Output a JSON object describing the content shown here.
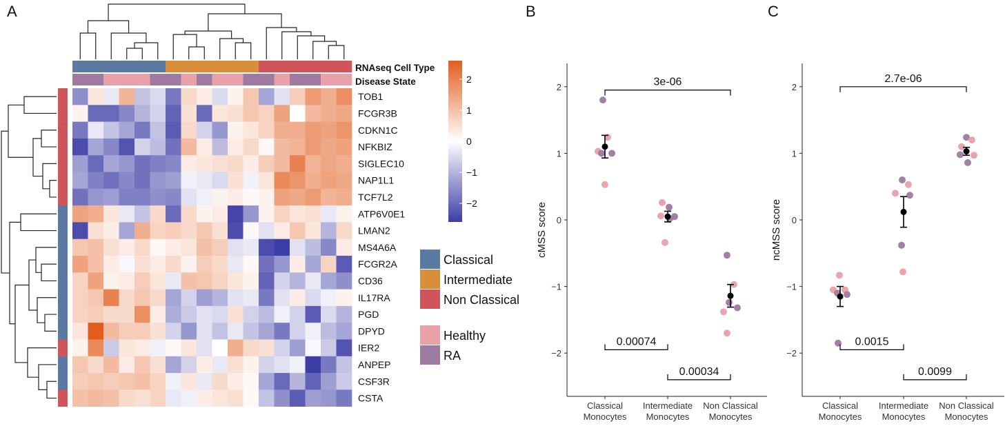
{
  "panels": {
    "a": "A",
    "b": "B",
    "c": "C"
  },
  "colors": {
    "classical": "#5b7aa3",
    "intermediate": "#d98e3a",
    "non_classical": "#cf555b",
    "healthy": "#e9a0a8",
    "ra": "#9d7a9f",
    "heat_low": "#3d3da6",
    "heat_mid": "#ffffff",
    "heat_high": "#e25d1d"
  },
  "chart_data": [
    {
      "type": "heatmap",
      "annotation_labels": [
        "RNAseq Cell Type",
        "Disease State"
      ],
      "column_cell_types": [
        "Classical",
        "Classical",
        "Classical",
        "Classical",
        "Classical",
        "Classical",
        "Intermediate",
        "Intermediate",
        "Intermediate",
        "Intermediate",
        "Intermediate",
        "Intermediate",
        "Non Classical",
        "Non Classical",
        "Non Classical",
        "Non Classical",
        "Non Classical",
        "Non Classical"
      ],
      "column_disease_states": [
        "RA",
        "RA",
        "Healthy",
        "Healthy",
        "Healthy",
        "RA",
        "RA",
        "Healthy",
        "RA",
        "Healthy",
        "Healthy",
        "RA",
        "RA",
        "Healthy",
        "RA",
        "RA",
        "Healthy",
        "Healthy"
      ],
      "genes": [
        "TOB1",
        "FCGR3B",
        "CDKN1C",
        "NFKBIZ",
        "SIGLEC10",
        "NAP1L1",
        "TCF7L2",
        "ATP6V0E1",
        "LMAN2",
        "MS4A6A",
        "FCGR2A",
        "CD36",
        "IL17RA",
        "PGD",
        "DPYD",
        "IER2",
        "ANPEP",
        "CSF3R",
        "CSTA"
      ],
      "gene_groups": [
        "Non Classical",
        "Non Classical",
        "Non Classical",
        "Non Classical",
        "Non Classical",
        "Non Classical",
        "Non Classical",
        "Classical",
        "Classical",
        "Classical",
        "Classical",
        "Classical",
        "Classical",
        "Classical",
        "Classical",
        "Non Classical",
        "Classical",
        "Classical",
        "Non Classical"
      ],
      "values": [
        [
          -1.5,
          0.4,
          -0.3,
          1.2,
          -0.8,
          -0.5,
          -1.8,
          0.6,
          0.3,
          -0.5,
          0.2,
          0.9,
          -1.2,
          -0.4,
          0.8,
          1.6,
          1.3,
          1.8
        ],
        [
          0.2,
          -2.0,
          -2.0,
          -1.6,
          -1.0,
          -0.6,
          -2.1,
          0.5,
          -2.0,
          0.4,
          0.5,
          0.9,
          0.7,
          1.5,
          0.0,
          1.1,
          1.3,
          1.4
        ],
        [
          -1.8,
          -0.3,
          -0.8,
          -1.2,
          -1.8,
          -0.8,
          -2.2,
          0.6,
          -0.6,
          -1.4,
          0.2,
          0.4,
          0.7,
          1.3,
          1.3,
          1.6,
          1.5,
          1.7
        ],
        [
          -2.4,
          -1.2,
          -1.6,
          -2.3,
          -0.6,
          -0.9,
          -1.9,
          1.1,
          0.3,
          -0.9,
          0.3,
          0.6,
          0.1,
          1.1,
          1.2,
          1.6,
          1.4,
          1.5
        ],
        [
          -1.3,
          -2.0,
          -1.2,
          -1.4,
          -1.9,
          -1.7,
          -1.6,
          0.3,
          0.4,
          0.5,
          0.6,
          0.3,
          0.8,
          1.1,
          2.0,
          1.2,
          1.4,
          1.3
        ],
        [
          -1.2,
          -1.7,
          -1.9,
          -1.6,
          -1.9,
          -1.4,
          -1.3,
          -0.2,
          -0.3,
          -0.5,
          0.5,
          -0.2,
          0.4,
          1.9,
          1.7,
          1.3,
          1.5,
          1.4
        ],
        [
          -1.9,
          -1.4,
          -1.3,
          -1.7,
          -1.7,
          -1.5,
          -1.6,
          -0.4,
          -0.2,
          0.2,
          0.3,
          0.1,
          0.2,
          1.5,
          1.4,
          1.6,
          1.2,
          1.3
        ],
        [
          1.5,
          1.3,
          0.4,
          -0.3,
          -0.8,
          0.6,
          -2.0,
          0.6,
          0.2,
          0.3,
          -2.5,
          -1.4,
          0.2,
          0.7,
          0.4,
          0.5,
          -0.3,
          0.2
        ],
        [
          -2.4,
          0.5,
          0.3,
          -1.2,
          1.3,
          0.7,
          0.8,
          0.6,
          0.9,
          0.5,
          -2.4,
          0.1,
          -0.4,
          0.3,
          0.9,
          0.4,
          -1.0,
          0.6
        ],
        [
          0.9,
          1.0,
          0.5,
          0.3,
          0.6,
          0.1,
          0.3,
          0.4,
          1.0,
          0.8,
          -0.4,
          -0.3,
          -2.4,
          -2.6,
          -0.4,
          -0.9,
          -1.6,
          0.3
        ],
        [
          1.5,
          1.0,
          0.3,
          -0.1,
          0.5,
          0.3,
          0.6,
          0.2,
          0.8,
          0.6,
          -0.3,
          0.1,
          -1.9,
          -1.4,
          0.3,
          -1.2,
          0.7,
          -2.2
        ],
        [
          0.7,
          1.5,
          0.2,
          0.3,
          0.8,
          0.4,
          -0.3,
          1.0,
          0.9,
          0.7,
          0.4,
          0.2,
          -2.1,
          -0.6,
          -1.0,
          -0.3,
          -1.2,
          -1.5
        ],
        [
          0.7,
          0.9,
          2.0,
          0.6,
          0.9,
          0.6,
          -1.2,
          -0.6,
          -1.3,
          -1.0,
          -0.4,
          -0.3,
          -1.8,
          -0.4,
          0.3,
          -0.5,
          -0.2,
          0.2
        ],
        [
          0.7,
          0.8,
          0.6,
          0.6,
          1.8,
          0.3,
          -1.1,
          -0.7,
          -0.4,
          -0.5,
          0.5,
          -0.6,
          -0.9,
          -0.2,
          -0.6,
          -2.2,
          -0.5,
          -1.0
        ],
        [
          0.4,
          2.6,
          1.1,
          0.8,
          0.8,
          0.5,
          -0.6,
          -1.4,
          -0.4,
          -0.8,
          -0.3,
          -0.8,
          -1.2,
          -1.8,
          -0.6,
          -0.2,
          -0.9,
          -1.2
        ],
        [
          0.2,
          1.9,
          -0.7,
          0.4,
          0.3,
          -0.2,
          0.1,
          0.4,
          -0.4,
          0.0,
          1.3,
          0.6,
          0.5,
          -0.6,
          -1.3,
          -0.1,
          -0.7,
          -2.3
        ],
        [
          0.9,
          0.6,
          1.1,
          0.3,
          0.9,
          0.5,
          -1.2,
          -0.6,
          0.3,
          -0.3,
          0.5,
          0.2,
          -0.6,
          -0.4,
          -0.2,
          -2.6,
          -1.8,
          -0.8
        ],
        [
          0.8,
          0.9,
          0.8,
          0.9,
          1.0,
          0.7,
          -0.2,
          0.4,
          -0.3,
          0.6,
          0.3,
          0.1,
          -1.2,
          -2.0,
          -1.0,
          -2.1,
          -1.3,
          -0.7
        ],
        [
          1.0,
          1.1,
          1.0,
          0.6,
          0.5,
          0.7,
          -0.3,
          -0.2,
          0.3,
          0.4,
          0.5,
          0.1,
          -0.8,
          -1.5,
          -2.2,
          -1.3,
          -1.4,
          -1.8
        ]
      ],
      "colorbar": {
        "ticks": [
          2,
          1,
          0,
          -1,
          -2
        ],
        "range": [
          -2.6,
          2.6
        ]
      },
      "legend_cell_type": [
        "Classical",
        "Intermediate",
        "Non Classical"
      ],
      "legend_disease_state": [
        "Healthy",
        "RA"
      ]
    },
    {
      "type": "scatter",
      "ylabel": "cMSS score",
      "categories": [
        "Classical\nMonocytes",
        "Intermediate\nMonocytes",
        "Non Classical\nMonocytes"
      ],
      "ylim": [
        -2.65,
        2.35
      ],
      "yticks": [
        2,
        1,
        0,
        -1,
        -2
      ],
      "points": [
        {
          "group": 0,
          "dx": -0.03,
          "y": 1.8,
          "state": "RA"
        },
        {
          "group": 0,
          "dx": 0.04,
          "y": 1.24,
          "state": "Healthy"
        },
        {
          "group": 0,
          "dx": -0.1,
          "y": 1.03,
          "state": "Healthy"
        },
        {
          "group": 0,
          "dx": -0.05,
          "y": 1.0,
          "state": "RA"
        },
        {
          "group": 0,
          "dx": 0.1,
          "y": 1.0,
          "state": "RA"
        },
        {
          "group": 0,
          "dx": 0.0,
          "y": 0.53,
          "state": "Healthy"
        },
        {
          "group": 1,
          "dx": -0.08,
          "y": 0.26,
          "state": "Healthy"
        },
        {
          "group": 1,
          "dx": 0.02,
          "y": 0.19,
          "state": "RA"
        },
        {
          "group": 1,
          "dx": -0.1,
          "y": 0.06,
          "state": "Healthy"
        },
        {
          "group": 1,
          "dx": 0.03,
          "y": 0.02,
          "state": "RA"
        },
        {
          "group": 1,
          "dx": 0.1,
          "y": 0.05,
          "state": "RA"
        },
        {
          "group": 1,
          "dx": -0.04,
          "y": -0.34,
          "state": "Healthy"
        },
        {
          "group": 2,
          "dx": -0.05,
          "y": -0.53,
          "state": "RA"
        },
        {
          "group": 2,
          "dx": 0.05,
          "y": -0.97,
          "state": "Healthy"
        },
        {
          "group": 2,
          "dx": 0.1,
          "y": -1.32,
          "state": "RA"
        },
        {
          "group": 2,
          "dx": -0.02,
          "y": -1.24,
          "state": "RA"
        },
        {
          "group": 2,
          "dx": -0.1,
          "y": -1.38,
          "state": "Healthy"
        },
        {
          "group": 2,
          "dx": -0.05,
          "y": -1.7,
          "state": "Healthy"
        }
      ],
      "means": [
        1.1,
        0.05,
        -1.14
      ],
      "errors": [
        0.17,
        0.08,
        0.17
      ],
      "comparisons": [
        {
          "from": 0,
          "to": 2,
          "y": 1.95,
          "dir": "down",
          "label": "3e-06"
        },
        {
          "from": 0,
          "to": 1,
          "y": -1.95,
          "dir": "up",
          "label": "0.00074"
        },
        {
          "from": 1,
          "to": 2,
          "y": -2.4,
          "dir": "up",
          "label": "0.00034"
        }
      ]
    },
    {
      "type": "scatter",
      "ylabel": "ncMSS score",
      "categories": [
        "Classical\nMonocytes",
        "Intermediate\nMonocytes",
        "Non Classical\nMonocytes"
      ],
      "ylim": [
        -2.65,
        2.35
      ],
      "yticks": [
        2,
        1,
        0,
        -1,
        -2
      ],
      "points": [
        {
          "group": 0,
          "dx": -0.01,
          "y": -0.83,
          "state": "Healthy"
        },
        {
          "group": 0,
          "dx": -0.1,
          "y": -1.05,
          "state": "Healthy"
        },
        {
          "group": 0,
          "dx": -0.04,
          "y": -1.1,
          "state": "RA"
        },
        {
          "group": 0,
          "dx": 0.07,
          "y": -1.05,
          "state": "Healthy"
        },
        {
          "group": 0,
          "dx": 0.1,
          "y": -1.12,
          "state": "RA"
        },
        {
          "group": 0,
          "dx": -0.03,
          "y": -1.85,
          "state": "RA"
        },
        {
          "group": 1,
          "dx": -0.02,
          "y": 0.6,
          "state": "RA"
        },
        {
          "group": 1,
          "dx": 0.07,
          "y": 0.53,
          "state": "Healthy"
        },
        {
          "group": 1,
          "dx": -0.12,
          "y": 0.4,
          "state": "Healthy"
        },
        {
          "group": 1,
          "dx": 0.09,
          "y": 0.37,
          "state": "RA"
        },
        {
          "group": 1,
          "dx": -0.03,
          "y": -0.38,
          "state": "RA"
        },
        {
          "group": 1,
          "dx": -0.01,
          "y": -0.78,
          "state": "Healthy"
        },
        {
          "group": 2,
          "dx": 0.0,
          "y": 1.24,
          "state": "RA"
        },
        {
          "group": 2,
          "dx": 0.08,
          "y": 1.2,
          "state": "Healthy"
        },
        {
          "group": 2,
          "dx": -0.07,
          "y": 1.1,
          "state": "Healthy"
        },
        {
          "group": 2,
          "dx": -0.09,
          "y": 0.98,
          "state": "RA"
        },
        {
          "group": 2,
          "dx": 0.11,
          "y": 0.97,
          "state": "Healthy"
        },
        {
          "group": 2,
          "dx": 0.02,
          "y": 0.86,
          "state": "RA"
        }
      ],
      "means": [
        -1.15,
        0.12,
        1.03
      ],
      "errors": [
        0.15,
        0.23,
        0.06
      ],
      "comparisons": [
        {
          "from": 0,
          "to": 2,
          "y": 2.0,
          "dir": "down",
          "label": "2.7e-06"
        },
        {
          "from": 0,
          "to": 1,
          "y": -1.95,
          "dir": "up",
          "label": "0.0015"
        },
        {
          "from": 1,
          "to": 2,
          "y": -2.4,
          "dir": "up",
          "label": "0.0099"
        }
      ]
    }
  ]
}
